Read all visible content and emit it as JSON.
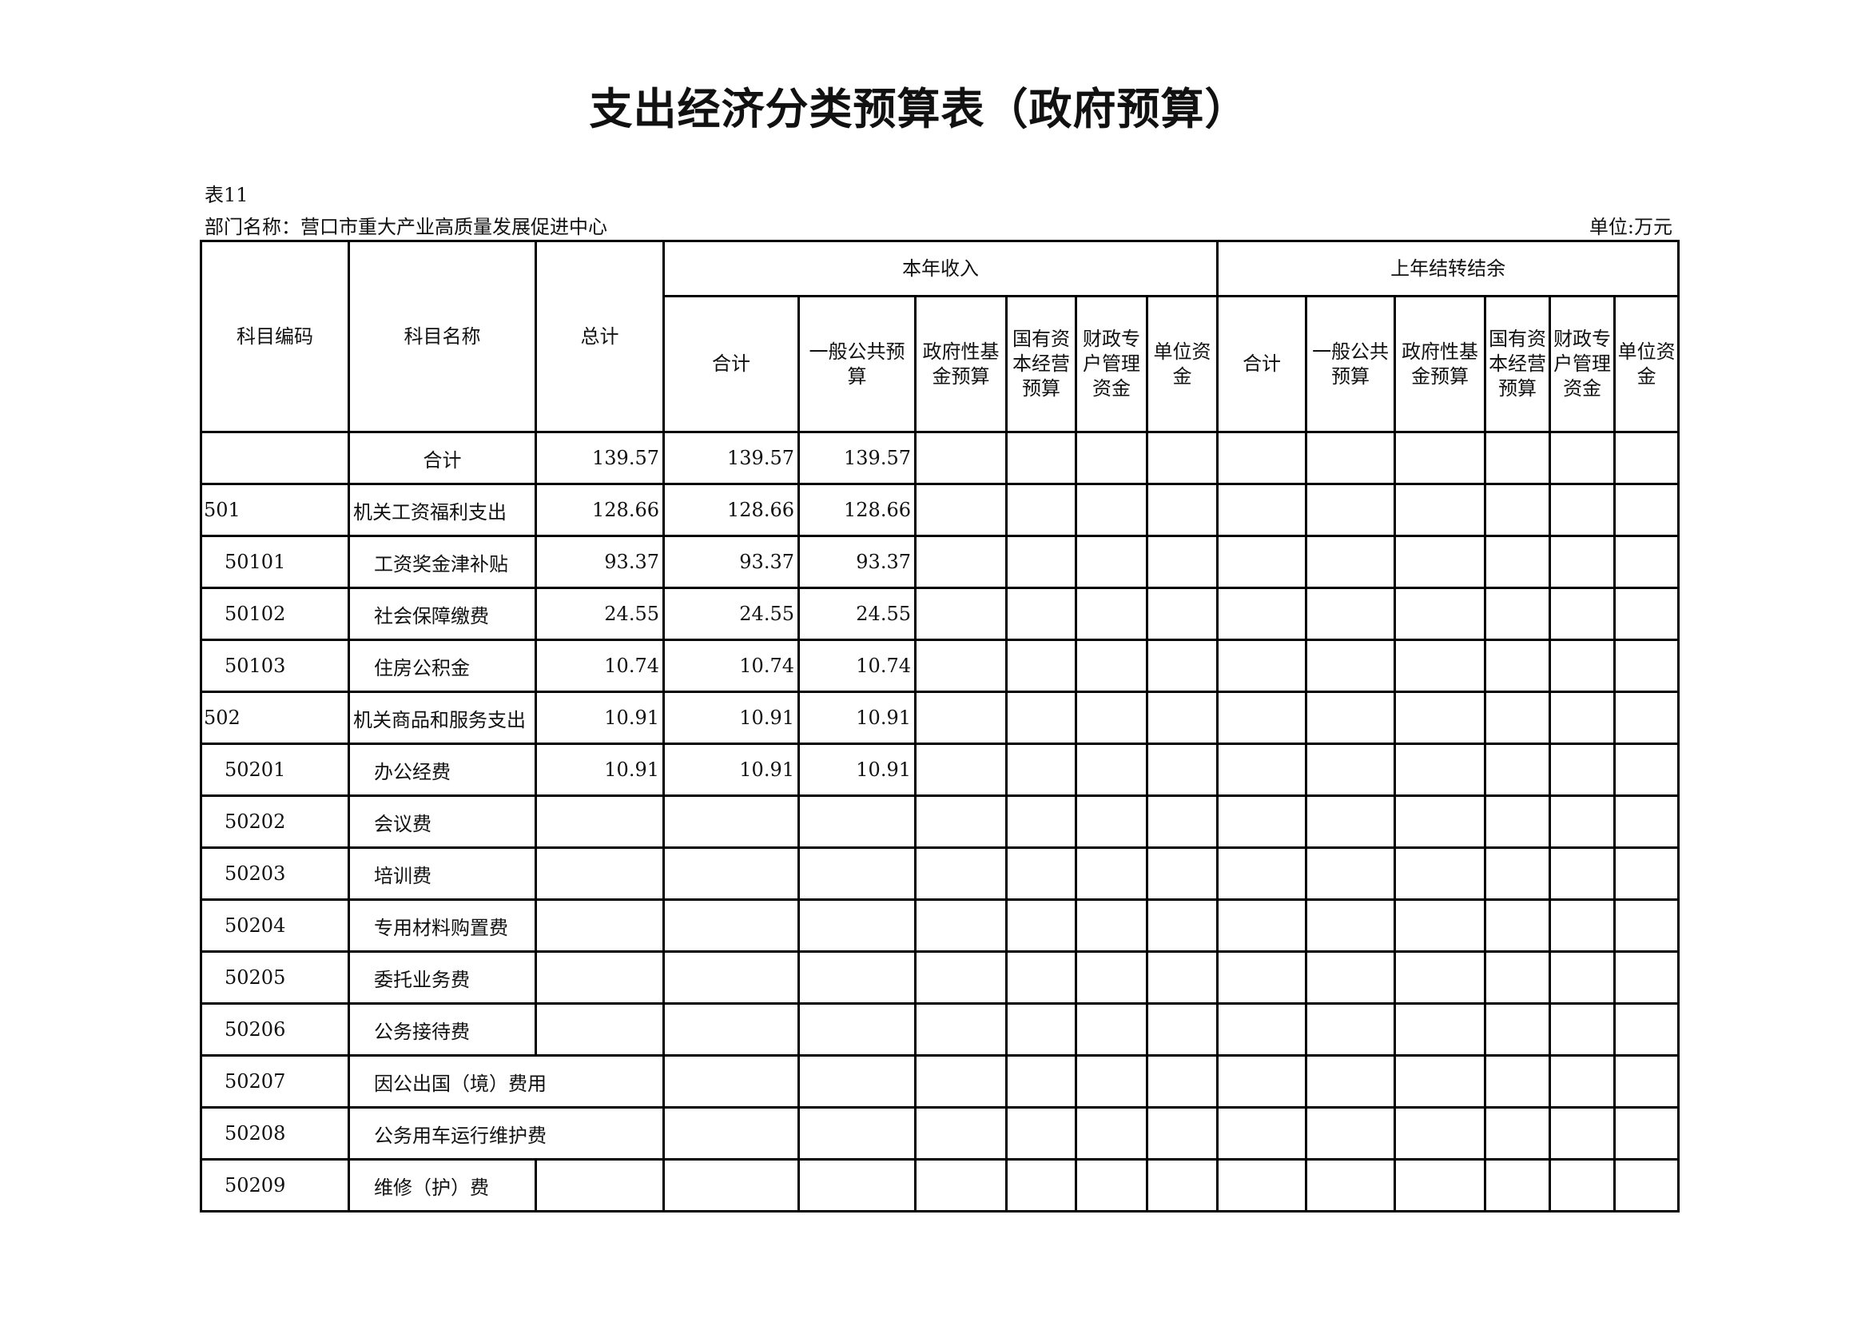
{
  "title": "支出经济分类预算表（政府预算）",
  "table_no": "表11",
  "department": "部门名称：营口市重大产业高质量发展促进中心",
  "unit": "单位:万元",
  "headers": {
    "code": "科目编码",
    "name": "科目名称",
    "total": "总计",
    "current_year": "本年收入",
    "carryover": "上年结转结余",
    "current_cols": [
      "合计",
      "一般公共预算",
      "政府性基金预算",
      "国有资本经营预算",
      "财政专户管理资金",
      "单位资金"
    ],
    "carry_cols": [
      "合计",
      "一般公共预算",
      "政府性基金预算",
      "国有资本经营预算",
      "财政专户管理资金",
      "单位资金"
    ]
  },
  "rows": [
    {
      "code": "",
      "name": "合计",
      "level": 0,
      "total": "139.57",
      "cy_total": "139.57",
      "cy_general": "139.57"
    },
    {
      "code": "501",
      "name": "机关工资福利支出",
      "level": 1,
      "total": "128.66",
      "cy_total": "128.66",
      "cy_general": "128.66"
    },
    {
      "code": "50101",
      "name": "工资奖金津补贴",
      "level": 2,
      "total": "93.37",
      "cy_total": "93.37",
      "cy_general": "93.37"
    },
    {
      "code": "50102",
      "name": "社会保障缴费",
      "level": 2,
      "total": "24.55",
      "cy_total": "24.55",
      "cy_general": "24.55"
    },
    {
      "code": "50103",
      "name": "住房公积金",
      "level": 2,
      "total": "10.74",
      "cy_total": "10.74",
      "cy_general": "10.74"
    },
    {
      "code": "502",
      "name": "机关商品和服务支出",
      "level": 1,
      "total": "10.91",
      "cy_total": "10.91",
      "cy_general": "10.91"
    },
    {
      "code": "50201",
      "name": "办公经费",
      "level": 2,
      "total": "10.91",
      "cy_total": "10.91",
      "cy_general": "10.91"
    },
    {
      "code": "50202",
      "name": "会议费",
      "level": 2,
      "total": "",
      "cy_total": "",
      "cy_general": ""
    },
    {
      "code": "50203",
      "name": "培训费",
      "level": 2,
      "total": "",
      "cy_total": "",
      "cy_general": ""
    },
    {
      "code": "50204",
      "name": "专用材料购置费",
      "level": 2,
      "total": "",
      "cy_total": "",
      "cy_general": ""
    },
    {
      "code": "50205",
      "name": "委托业务费",
      "level": 2,
      "total": "",
      "cy_total": "",
      "cy_general": ""
    },
    {
      "code": "50206",
      "name": "公务接待费",
      "level": 2,
      "total": "",
      "cy_total": "",
      "cy_general": ""
    },
    {
      "code": "50207",
      "name": "因公出国（境）费用",
      "level": 2,
      "merged_name": true,
      "total": "",
      "cy_total": "",
      "cy_general": ""
    },
    {
      "code": "50208",
      "name": "公务用车运行维护费",
      "level": 2,
      "merged_name": true,
      "total": "",
      "cy_total": "",
      "cy_general": ""
    },
    {
      "code": "50209",
      "name": "维修（护）费",
      "level": 2,
      "total": "",
      "cy_total": "",
      "cy_general": ""
    }
  ]
}
